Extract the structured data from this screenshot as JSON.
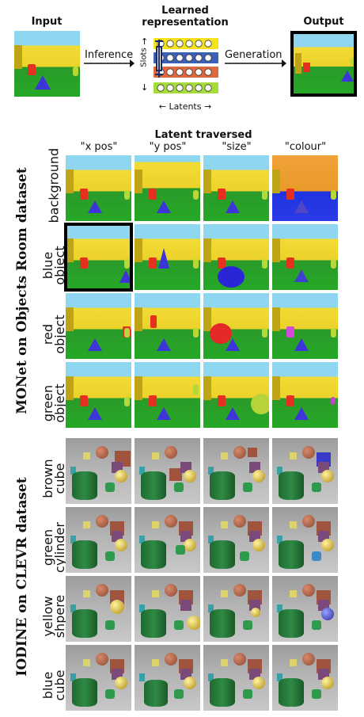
{
  "header": {
    "input_label": "Input",
    "learned_label_1": "Learned",
    "learned_label_2": "representation",
    "output_label": "Output",
    "inference_label": "Inference",
    "generation_label": "Generation",
    "slots_label": "Slots",
    "latents_label": "Latents"
  },
  "grid": {
    "title": "Latent traversed",
    "columns": [
      "\"x pos\"",
      "\"y pos\"",
      "\"size\"",
      "\"colour\""
    ]
  },
  "monet": {
    "section_label": "MONet on Objects Room dataset",
    "rows": [
      "background",
      [
        "blue",
        "object"
      ],
      [
        "red",
        "object"
      ],
      [
        "green",
        "object"
      ]
    ]
  },
  "iodine": {
    "section_label": "IODINE on CLEVR dataset",
    "rows": [
      [
        "brown",
        "cube"
      ],
      [
        "green",
        "cylinder"
      ],
      [
        "yellow",
        "shpere"
      ],
      [
        "blue",
        "cube"
      ]
    ]
  },
  "colors": {
    "slot_yellow": "#f3e21c",
    "slot_blue": "#3c5fb8",
    "slot_red": "#e0683f",
    "slot_green": "#a6dc3a"
  }
}
